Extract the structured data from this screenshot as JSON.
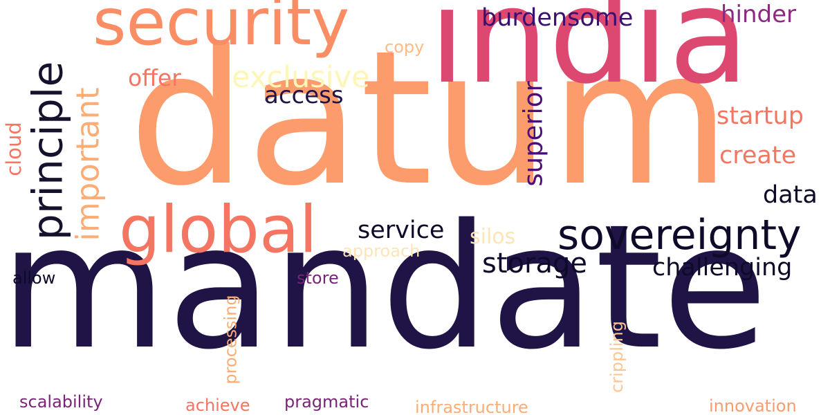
{
  "cloud": {
    "words": [
      {
        "key": "mandate",
        "text": "mandate",
        "color": "#1f1445"
      },
      {
        "key": "datum",
        "text": "datum",
        "color": "#fc9b6c"
      },
      {
        "key": "india",
        "text": "india",
        "color": "#dc4870"
      },
      {
        "key": "security",
        "text": "security",
        "color": "#fa8d64"
      },
      {
        "key": "global",
        "text": "global",
        "color": "#f47562"
      },
      {
        "key": "sovereignty",
        "text": "sovereignty",
        "color": "#0e0a29"
      },
      {
        "key": "principle",
        "text": "principle",
        "color": "#18112e"
      },
      {
        "key": "important",
        "text": "important",
        "color": "#fdac74"
      },
      {
        "key": "storage",
        "text": "storage",
        "color": "#0e0a29"
      },
      {
        "key": "challenging",
        "text": "challenging",
        "color": "#0e0a29"
      },
      {
        "key": "exclusive",
        "text": "exclusive",
        "color": "#fcf7b6"
      },
      {
        "key": "burdensome",
        "text": "burdensome",
        "color": "#3b0f70"
      },
      {
        "key": "hinder",
        "text": "hinder",
        "color": "#8c2981"
      },
      {
        "key": "superior",
        "text": "superior",
        "color": "#4a1079"
      },
      {
        "key": "startup",
        "text": "startup",
        "color": "#f47562"
      },
      {
        "key": "create",
        "text": "create",
        "color": "#f47562"
      },
      {
        "key": "data",
        "text": "data",
        "color": "#0e0a29"
      },
      {
        "key": "service",
        "text": "service",
        "color": "#0e0a29"
      },
      {
        "key": "access",
        "text": "access",
        "color": "#1f1445"
      },
      {
        "key": "offer",
        "text": "offer",
        "color": "#f47562"
      },
      {
        "key": "cloud",
        "text": "cloud",
        "color": "#f47562"
      },
      {
        "key": "silos",
        "text": "silos",
        "color": "#fde5b5"
      },
      {
        "key": "approach",
        "text": "approach",
        "color": "#fde5b5"
      },
      {
        "key": "copy",
        "text": "copy",
        "color": "#fdbb86"
      },
      {
        "key": "allow",
        "text": "allow",
        "color": "#0e0a29"
      },
      {
        "key": "store",
        "text": "store",
        "color": "#7a2477"
      },
      {
        "key": "processing",
        "text": "processing",
        "color": "#fdac74"
      },
      {
        "key": "crippling",
        "text": "crippling",
        "color": "#fdc592"
      },
      {
        "key": "scalability",
        "text": "scalability",
        "color": "#7a2477"
      },
      {
        "key": "achieve",
        "text": "achieve",
        "color": "#f47562"
      },
      {
        "key": "pragmatic",
        "text": "pragmatic",
        "color": "#7a2477"
      },
      {
        "key": "infrastructure",
        "text": "infrastructure",
        "color": "#fdac74"
      },
      {
        "key": "innovation",
        "text": "innovation",
        "color": "#fc9b6c"
      }
    ]
  }
}
